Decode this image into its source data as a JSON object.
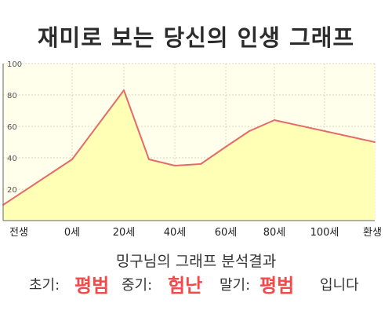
{
  "header": {
    "title": "재미로 보는 당신의 인생 그래프"
  },
  "colors": {
    "area_fill": "#ffffb5",
    "line": "#e56a6a",
    "plot_background": "#ffffec",
    "result_text": "#f04a4a"
  },
  "chart_data": {
    "type": "area",
    "x_categories": [
      "전생",
      "0세",
      "20세",
      "40세",
      "60세",
      "80세",
      "100세",
      "환생"
    ],
    "points": [
      {
        "x": "전생",
        "y": 10
      },
      {
        "x": "0세",
        "y": 39
      },
      {
        "x": "20세",
        "y": 83
      },
      {
        "x": "30세",
        "y": 39
      },
      {
        "x": "40세",
        "y": 35
      },
      {
        "x": "50세",
        "y": 36
      },
      {
        "x": "60세",
        "y": 47
      },
      {
        "x": "70세",
        "y": 57
      },
      {
        "x": "80세",
        "y": 64
      },
      {
        "x": "환생",
        "y": 50
      }
    ],
    "y_ticks": [
      20,
      40,
      60,
      80,
      100
    ],
    "ylim": [
      0,
      100
    ],
    "grid": true,
    "legend": "none"
  },
  "analysis": {
    "title": "밍구님의 그래프 분석결과",
    "early_label": "초기:",
    "early_value": "평범",
    "middle_label": "중기:",
    "middle_value": "험난",
    "late_label": "말기:",
    "late_value": "평범",
    "ending": "입니다"
  }
}
